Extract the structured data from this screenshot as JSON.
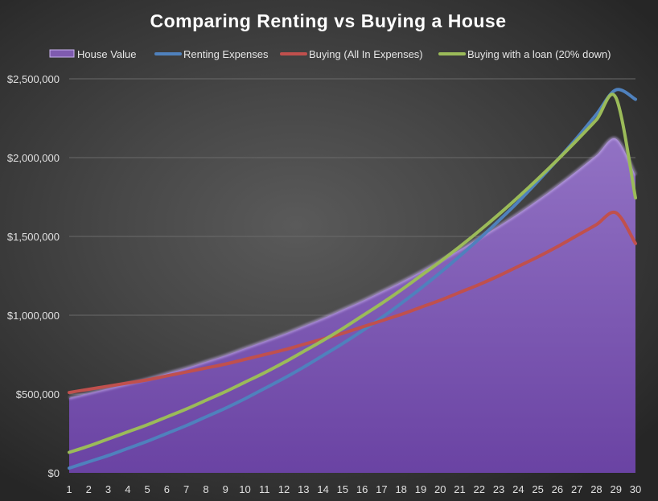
{
  "chart_data": {
    "type": "line",
    "title": "Comparing Renting vs Buying a House",
    "xlabel": "",
    "ylabel": "",
    "x": [
      1,
      2,
      3,
      4,
      5,
      6,
      7,
      8,
      9,
      10,
      11,
      12,
      13,
      14,
      15,
      16,
      17,
      18,
      19,
      20,
      21,
      22,
      23,
      24,
      25,
      26,
      27,
      28,
      29,
      30
    ],
    "ylim": [
      0,
      2500000
    ],
    "yticks": [
      0,
      500000,
      1000000,
      1500000,
      2000000,
      2500000
    ],
    "ytick_labels": [
      "$0",
      "$500,000",
      "$1,000,000",
      "$1,500,000",
      "$2,000,000",
      "$2,500,000"
    ],
    "grid": true,
    "legend_position": "top",
    "series": [
      {
        "name": "House Value",
        "style": "area",
        "color": "#7f5bb0",
        "values": [
          475000,
          505000,
          535000,
          565000,
          595000,
          630000,
          665000,
          705000,
          745000,
          790000,
          835000,
          880000,
          930000,
          980000,
          1035000,
          1090000,
          1150000,
          1210000,
          1275000,
          1345000,
          1415000,
          1490000,
          1565000,
          1645000,
          1730000,
          1820000,
          1915000,
          2015000,
          2120000,
          1890000
        ]
      },
      {
        "name": "Renting Expenses",
        "style": "line",
        "color": "#4f81bd",
        "values": [
          30000,
          70000,
          110000,
          155000,
          200000,
          250000,
          300000,
          355000,
          410000,
          470000,
          535000,
          600000,
          670000,
          745000,
          820000,
          900000,
          985000,
          1075000,
          1170000,
          1270000,
          1375000,
          1485000,
          1600000,
          1720000,
          1850000,
          1985000,
          2125000,
          2275000,
          2430000,
          2370000
        ]
      },
      {
        "name": "Buying (All In Expenses)",
        "style": "line",
        "color": "#c0504d",
        "values": [
          510000,
          530000,
          550000,
          570000,
          590000,
          615000,
          640000,
          665000,
          690000,
          720000,
          750000,
          780000,
          815000,
          850000,
          885000,
          925000,
          965000,
          1005000,
          1050000,
          1095000,
          1145000,
          1195000,
          1250000,
          1310000,
          1370000,
          1435000,
          1505000,
          1575000,
          1650000,
          1455000
        ]
      },
      {
        "name": "Buying with a loan (20% down)",
        "style": "line",
        "color": "#9bbb59",
        "values": [
          130000,
          170000,
          215000,
          260000,
          305000,
          355000,
          405000,
          460000,
          515000,
          575000,
          635000,
          700000,
          770000,
          840000,
          915000,
          995000,
          1075000,
          1160000,
          1250000,
          1340000,
          1435000,
          1535000,
          1640000,
          1750000,
          1865000,
          1985000,
          2110000,
          2240000,
          2380000,
          1745000
        ]
      }
    ]
  }
}
